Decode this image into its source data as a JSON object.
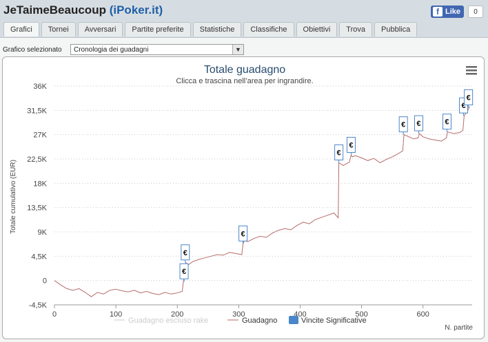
{
  "header": {
    "title_main": "JeTaimeBeaucoup",
    "title_site": "iPoker.it",
    "like_label": "Like",
    "like_count": "0"
  },
  "tabs": [
    "Grafici",
    "Tornei",
    "Avversari",
    "Partite preferite",
    "Statistiche",
    "Classifiche",
    "Obiettivi",
    "Trova",
    "Pubblica"
  ],
  "selector": {
    "label": "Grafico selezionato",
    "value": "Cronologia dei guadagni"
  },
  "chart_data": {
    "type": "line",
    "title": "Totale guadagno",
    "subtitle": "Clicca e trascina nell’area per ingrandire.",
    "ylabel": "Totale cumulativo (EUR)",
    "xlabel": "N. partite",
    "xlim": [
      0,
      680
    ],
    "ylim": [
      -4500,
      36000
    ],
    "xticks": [
      0,
      100,
      200,
      300,
      400,
      500,
      600
    ],
    "yticks": [
      -4500,
      0,
      4500,
      9000,
      13500,
      18000,
      22500,
      27000,
      31500,
      36000
    ],
    "ytick_labels": [
      "-4,5K",
      "0",
      "4,5K",
      "9K",
      "13,5K",
      "18K",
      "22,5K",
      "27K",
      "31,5K",
      "36K"
    ],
    "legend": [
      "Guadagno escluso rake",
      "Guadagno",
      "Vincite Significative"
    ],
    "legend_position": "bottom",
    "grid": true,
    "colors": {
      "line": "#b56a6a",
      "hidden": "#cccccc",
      "flag": "#4a86c8"
    },
    "series": [
      {
        "name": "Guadagno",
        "x": [
          0,
          10,
          20,
          30,
          40,
          50,
          60,
          70,
          80,
          90,
          100,
          110,
          120,
          130,
          140,
          150,
          160,
          170,
          180,
          190,
          200,
          208,
          210,
          212,
          214,
          218,
          225,
          235,
          245,
          255,
          265,
          275,
          285,
          295,
          305,
          307,
          309,
          315,
          325,
          335,
          345,
          355,
          365,
          375,
          385,
          395,
          405,
          415,
          425,
          435,
          445,
          455,
          462,
          463,
          470,
          480,
          483,
          485,
          490,
          500,
          510,
          520,
          530,
          540,
          550,
          560,
          567,
          569,
          575,
          585,
          592,
          594,
          600,
          610,
          620,
          630,
          638,
          640,
          650,
          660,
          665,
          667,
          672,
          676
        ],
        "y": [
          0,
          -800,
          -1500,
          -1800,
          -1500,
          -2200,
          -3000,
          -2200,
          -2500,
          -1800,
          -1600,
          -1900,
          -2100,
          -1800,
          -2300,
          -2000,
          -2400,
          -2600,
          -2200,
          -2500,
          -2300,
          -2000,
          -200,
          1200,
          3300,
          2900,
          3500,
          3900,
          4200,
          4500,
          4800,
          4700,
          5200,
          5000,
          4800,
          6800,
          7400,
          7200,
          7800,
          8200,
          8000,
          8800,
          9300,
          9600,
          9400,
          10200,
          10800,
          10500,
          11300,
          11700,
          12100,
          12500,
          11600,
          21800,
          21300,
          21900,
          23200,
          22900,
          23100,
          22700,
          22200,
          22600,
          21800,
          22400,
          22900,
          23500,
          24000,
          27000,
          26700,
          26200,
          26400,
          27200,
          26600,
          26200,
          26000,
          25800,
          26400,
          27500,
          27200,
          27400,
          27800,
          30500,
          31300,
          32200
        ]
      }
    ],
    "significant_wins": [
      {
        "x": 211,
        "y": -200
      },
      {
        "x": 213,
        "y": 3300
      },
      {
        "x": 307,
        "y": 6800
      },
      {
        "x": 463,
        "y": 21800
      },
      {
        "x": 483,
        "y": 23200
      },
      {
        "x": 568,
        "y": 27000
      },
      {
        "x": 593,
        "y": 27200
      },
      {
        "x": 639,
        "y": 27500
      },
      {
        "x": 666,
        "y": 30500
      },
      {
        "x": 674,
        "y": 32000
      }
    ],
    "flag_symbol": "€"
  }
}
